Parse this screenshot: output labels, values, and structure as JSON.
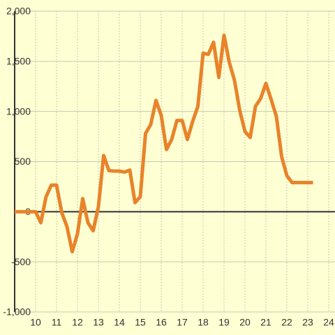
{
  "chart_data": {
    "type": "line",
    "x": [
      9,
      10,
      10.25,
      10.5,
      10.75,
      11,
      11.25,
      11.5,
      11.75,
      12,
      12.25,
      12.5,
      12.75,
      13,
      13.25,
      13.5,
      13.75,
      14,
      14.25,
      14.5,
      14.75,
      15,
      15.25,
      15.5,
      15.75,
      16,
      16.25,
      16.5,
      16.75,
      17,
      17.25,
      17.5,
      17.75,
      18,
      18.25,
      18.5,
      18.75,
      19,
      19.25,
      19.5,
      19.75,
      20,
      20.25,
      20.5,
      20.75,
      21,
      21.25,
      21.5,
      21.75,
      22,
      22.25,
      22.5,
      22.75,
      23,
      23.25
    ],
    "series": [
      {
        "color": "#e8832a",
        "values": [
          0,
          0,
          -110,
          150,
          265,
          265,
          -10,
          -150,
          -400,
          -220,
          130,
          -110,
          -190,
          50,
          560,
          410,
          405,
          405,
          395,
          415,
          90,
          150,
          780,
          870,
          1110,
          960,
          620,
          720,
          910,
          910,
          720,
          900,
          1050,
          1580,
          1570,
          1690,
          1340,
          1760,
          1490,
          1310,
          1010,
          800,
          740,
          1050,
          1130,
          1280,
          1120,
          950,
          550,
          360,
          290,
          290,
          290,
          290,
          290
        ]
      }
    ],
    "xlim": [
      9,
      24.3
    ],
    "xticks": [
      10,
      11,
      12,
      13,
      14,
      15,
      16,
      17,
      18,
      19,
      20,
      21,
      22,
      23,
      24
    ],
    "ylim": [
      -1000,
      2000
    ],
    "yticks": [
      {
        "value": -1000,
        "label": "-1,000"
      },
      -500,
      0,
      500,
      {
        "value": 1000,
        "label": "1,000"
      },
      {
        "value": 1500,
        "label": "1,500"
      },
      {
        "value": 2000,
        "label": "2,000"
      }
    ],
    "grid": true
  }
}
